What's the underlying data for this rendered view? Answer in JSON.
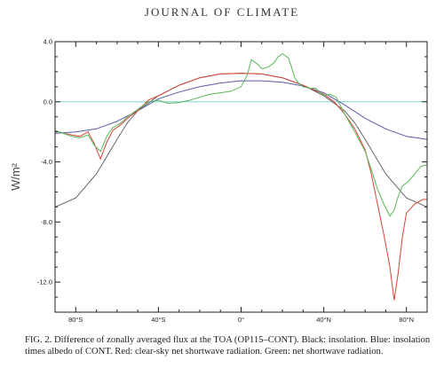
{
  "header": {
    "journal": "JOURNAL OF CLIMATE"
  },
  "caption": "FIG. 2. Difference of zonally averaged flux at the TOA (OP115–CONT). Black: insolation. Blue: insolation times albedo of CONT. Red: clear-sky net shortwave radiation. Green: net shortwave radiation.",
  "chart_data": {
    "type": "line",
    "title": "",
    "xlabel": "",
    "ylabel": "W/m²",
    "xlim": [
      -90,
      90
    ],
    "ylim": [
      -14.0,
      4.0
    ],
    "yticks": [
      4.0,
      0.0,
      -4.0,
      -8.0,
      -12.0
    ],
    "ytick_labels": [
      "4.0",
      "0.0",
      "-4.0",
      "-8.0",
      "-12.0"
    ],
    "xticks": [
      -80,
      -40,
      0,
      40,
      80
    ],
    "xtick_labels": [
      "80°S",
      "40°S",
      "0°",
      "40°N",
      "80°N"
    ],
    "grid": false,
    "legend": "none",
    "reference_line": {
      "y": 0.0,
      "color": "#7fd6d6"
    },
    "series": [
      {
        "color": "#666666",
        "x": [
          -90,
          -80,
          -70,
          -60,
          -55,
          -50,
          -40,
          -30,
          -20,
          -10,
          0,
          10,
          20,
          30,
          40,
          50,
          55,
          60,
          70,
          80,
          90
        ],
        "y": [
          -7.0,
          -6.4,
          -4.8,
          -2.5,
          -1.4,
          -0.6,
          0.4,
          1.1,
          1.6,
          1.85,
          1.9,
          1.85,
          1.6,
          1.1,
          0.4,
          -0.6,
          -1.4,
          -2.5,
          -4.8,
          -6.4,
          -7.0
        ]
      },
      {
        "color": "#5a5aa8",
        "x": [
          -90,
          -80,
          -70,
          -60,
          -50,
          -40,
          -30,
          -20,
          -10,
          0,
          10,
          20,
          30,
          40,
          50,
          60,
          70,
          80,
          90
        ],
        "y": [
          -2.1,
          -2.0,
          -1.8,
          -1.3,
          -0.6,
          0.2,
          0.65,
          1.0,
          1.25,
          1.4,
          1.4,
          1.3,
          1.05,
          0.6,
          -0.2,
          -1.1,
          -1.8,
          -2.3,
          -2.5
        ]
      },
      {
        "color": "#d9443a",
        "x": [
          -90,
          -86,
          -82,
          -78,
          -74,
          -71,
          -68,
          -65,
          -62,
          -58,
          -55,
          -50,
          -45,
          -40,
          -30,
          -20,
          -10,
          0,
          10,
          20,
          30,
          35,
          40,
          45,
          50,
          55,
          60,
          63,
          66,
          69,
          72,
          74,
          76,
          78,
          80,
          84,
          88,
          90
        ],
        "y": [
          -1.9,
          -2.1,
          -2.2,
          -2.3,
          -2.0,
          -2.8,
          -3.8,
          -2.7,
          -1.9,
          -1.5,
          -1.1,
          -0.6,
          0.1,
          0.4,
          1.1,
          1.6,
          1.85,
          1.9,
          1.85,
          1.6,
          1.1,
          0.8,
          0.5,
          0.0,
          -0.8,
          -1.8,
          -3.2,
          -4.8,
          -6.8,
          -8.8,
          -11.0,
          -13.2,
          -11.4,
          -9.0,
          -7.4,
          -6.8,
          -6.5,
          -6.5
        ]
      },
      {
        "color": "#5ab85a",
        "x": [
          -90,
          -86,
          -82,
          -78,
          -74,
          -71,
          -68,
          -65,
          -62,
          -58,
          -55,
          -50,
          -45,
          -40,
          -35,
          -30,
          -25,
          -20,
          -15,
          -10,
          -5,
          0,
          3,
          5,
          8,
          10,
          13,
          16,
          18,
          20,
          23,
          26,
          28,
          30,
          33,
          36,
          40,
          43,
          46,
          50,
          55,
          60,
          63,
          66,
          69,
          72,
          74,
          76,
          78,
          81,
          84,
          87,
          90
        ],
        "y": [
          -1.9,
          -2.1,
          -2.3,
          -2.4,
          -2.2,
          -2.9,
          -3.3,
          -2.3,
          -1.7,
          -1.4,
          -1.0,
          -0.5,
          0.0,
          0.1,
          -0.1,
          -0.05,
          0.1,
          0.3,
          0.5,
          0.6,
          0.7,
          1.0,
          1.8,
          2.8,
          2.5,
          2.2,
          2.3,
          2.6,
          3.0,
          3.2,
          2.9,
          1.6,
          1.2,
          1.0,
          0.9,
          0.9,
          0.4,
          0.5,
          0.3,
          -0.8,
          -2.0,
          -3.3,
          -4.5,
          -5.8,
          -6.8,
          -7.6,
          -7.2,
          -6.3,
          -5.6,
          -5.3,
          -4.8,
          -4.3,
          -4.2
        ]
      }
    ]
  }
}
